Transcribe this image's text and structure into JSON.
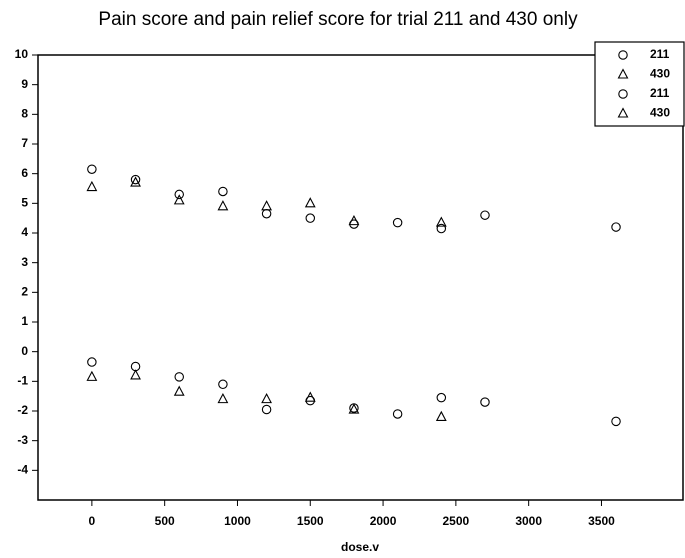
{
  "chart_data": {
    "type": "scatter",
    "title": "Pain score and pain relief score for trial 211 and 430 only",
    "x_label": "dose.v",
    "xlim": [
      -370,
      4060
    ],
    "ylim": [
      -5,
      10
    ],
    "xticks": [
      0,
      500,
      1000,
      1500,
      2000,
      2500,
      3000,
      3500
    ],
    "yticks": [
      -4,
      -3,
      -2,
      -1,
      0,
      1,
      2,
      3,
      4,
      5,
      6,
      7,
      8,
      9,
      10
    ],
    "legend": "top-right",
    "series": [
      {
        "name": "211",
        "color": "#000000",
        "marker": "circle",
        "x": [
          0,
          300,
          600,
          900,
          1200,
          1500,
          1800,
          2100,
          2400,
          2700,
          3600
        ],
        "values": [
          6.15,
          5.8,
          5.3,
          5.4,
          4.65,
          4.5,
          4.3,
          4.35,
          4.15,
          4.6,
          4.2
        ]
      },
      {
        "name": "430",
        "color": "#000000",
        "marker": "triangle",
        "x": [
          0,
          300,
          600,
          900,
          1200,
          1500,
          1800,
          2400
        ],
        "values": [
          5.55,
          5.7,
          5.1,
          4.9,
          4.9,
          5.0,
          4.4,
          4.35
        ]
      },
      {
        "name": "211",
        "color": "#000000",
        "marker": "circle",
        "x": [
          0,
          300,
          600,
          900,
          1200,
          1500,
          1800,
          2100,
          2400,
          2700,
          3600
        ],
        "values": [
          -0.35,
          -0.5,
          -0.85,
          -1.1,
          -1.95,
          -1.65,
          -1.9,
          -2.1,
          -1.55,
          -1.7,
          -2.35
        ]
      },
      {
        "name": "430",
        "color": "#000000",
        "marker": "triangle",
        "x": [
          0,
          300,
          600,
          900,
          1200,
          1500,
          1800,
          2400
        ],
        "values": [
          -0.85,
          -0.8,
          -1.35,
          -1.6,
          -1.6,
          -1.55,
          -1.95,
          -2.2
        ]
      }
    ]
  }
}
